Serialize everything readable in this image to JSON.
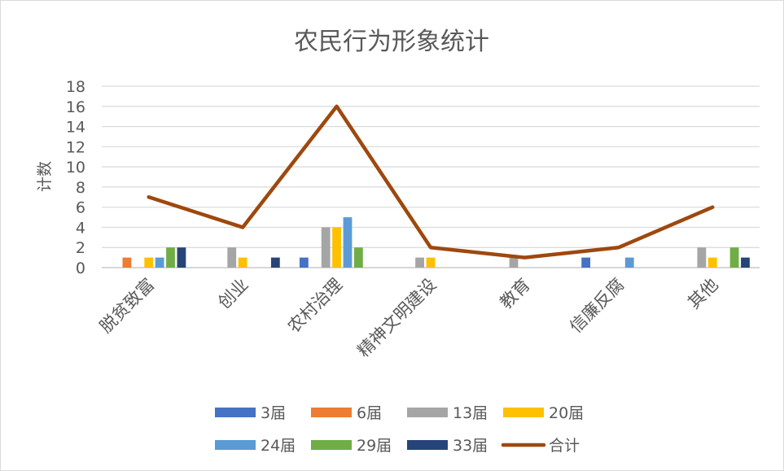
{
  "chart_data": {
    "type": "bar",
    "title": "农民行为形象统计",
    "xlabel": "",
    "ylabel": "计数",
    "ylim": [
      0,
      18
    ],
    "yticks": [
      0,
      2,
      4,
      6,
      8,
      10,
      12,
      14,
      16,
      18
    ],
    "grid": true,
    "legend_position": "bottom",
    "categories": [
      "脱贫致富",
      "创业",
      "农村治理",
      "精神文明建设",
      "教育",
      "信廉反腐",
      "其他"
    ],
    "series": [
      {
        "name": "3届",
        "type": "bar",
        "color": "#4472C4",
        "values": [
          0,
          0,
          1,
          0,
          0,
          1,
          0
        ]
      },
      {
        "name": "6届",
        "type": "bar",
        "color": "#ED7D31",
        "values": [
          1,
          0,
          0,
          0,
          0,
          0,
          0
        ]
      },
      {
        "name": "13届",
        "type": "bar",
        "color": "#A5A5A5",
        "values": [
          0,
          2,
          4,
          1,
          1,
          0,
          2
        ]
      },
      {
        "name": "20届",
        "type": "bar",
        "color": "#FFC000",
        "values": [
          1,
          1,
          4,
          1,
          0,
          0,
          1
        ]
      },
      {
        "name": "24届",
        "type": "bar",
        "color": "#5B9BD5",
        "values": [
          1,
          0,
          5,
          0,
          0,
          1,
          0
        ]
      },
      {
        "name": "29届",
        "type": "bar",
        "color": "#70AD47",
        "values": [
          2,
          0,
          2,
          0,
          0,
          0,
          2
        ]
      },
      {
        "name": "33届",
        "type": "bar",
        "color": "#264478",
        "values": [
          2,
          1,
          0,
          0,
          0,
          0,
          1
        ]
      },
      {
        "name": "合计",
        "type": "line",
        "color": "#9E480E",
        "values": [
          7,
          4,
          16,
          2,
          1,
          2,
          6
        ]
      }
    ]
  }
}
